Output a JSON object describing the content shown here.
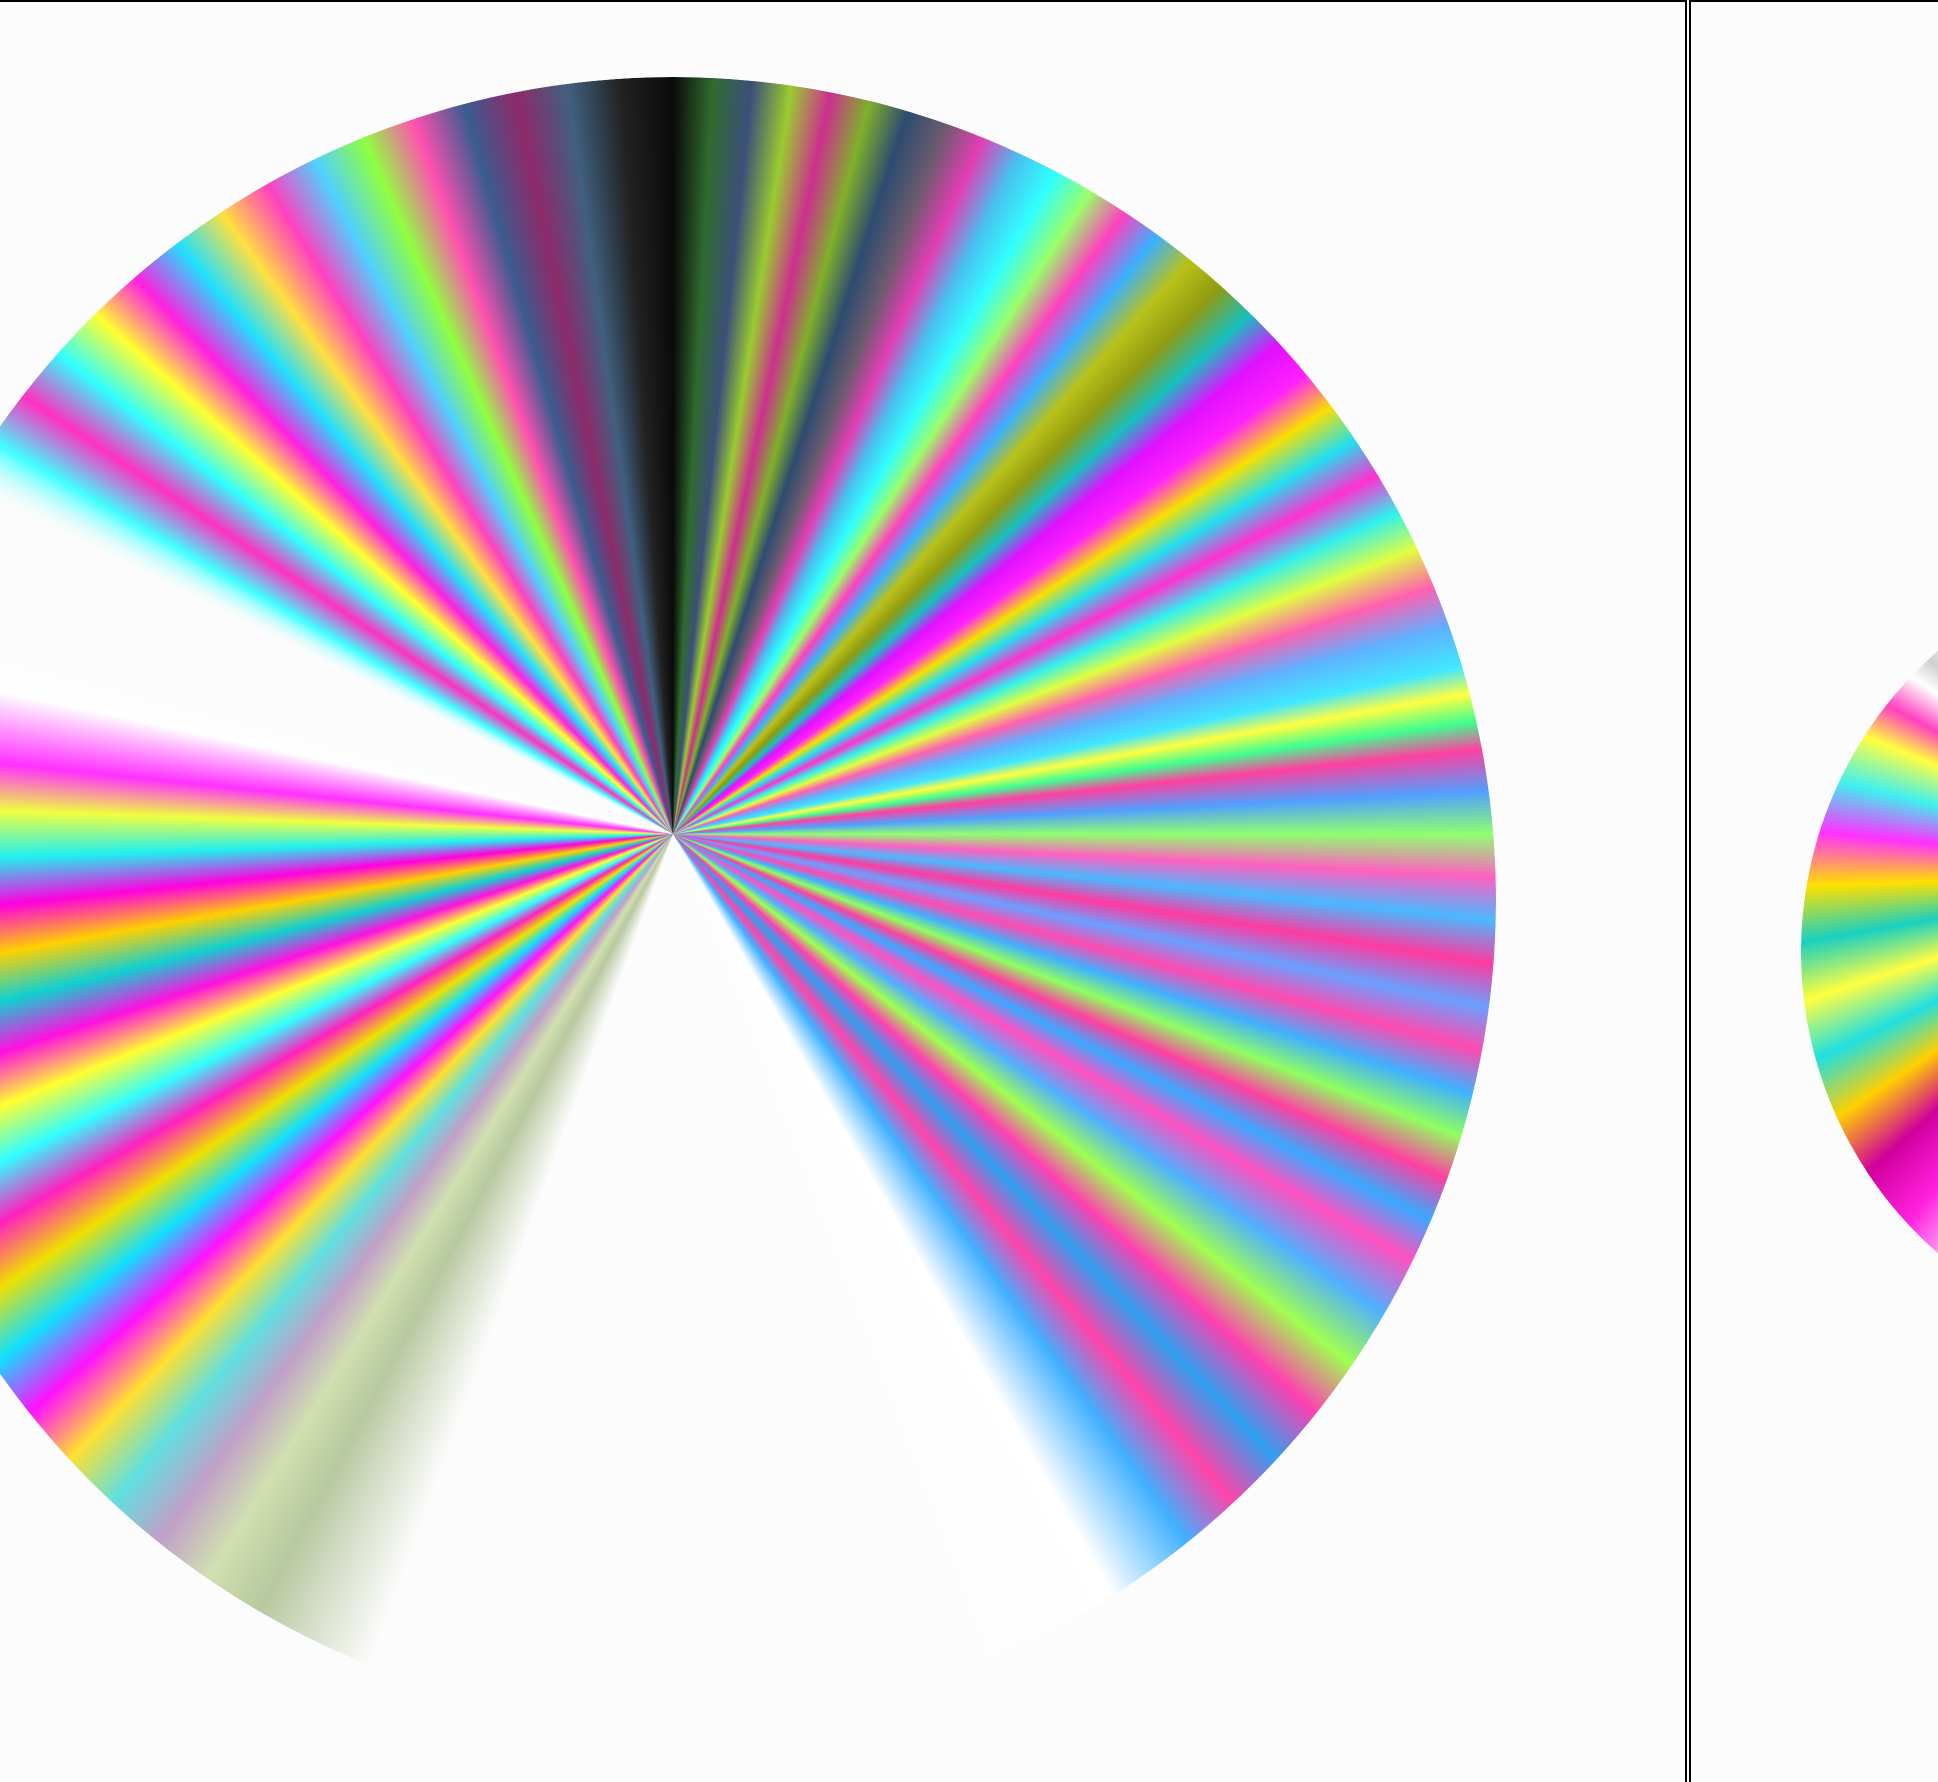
{
  "colors": {
    "background": "#fcfcfc",
    "divider": "#000000",
    "palette": [
      "#ff00ff",
      "#00ffff",
      "#ffff00",
      "#ff3399",
      "#33aaff",
      "#99ff33",
      "#111111",
      "#ffffff"
    ]
  },
  "panels": [
    {
      "name": "left-panel",
      "content": "radial-color-wheel"
    },
    {
      "name": "right-panel",
      "content": "radial-color-wheel-partial"
    }
  ]
}
